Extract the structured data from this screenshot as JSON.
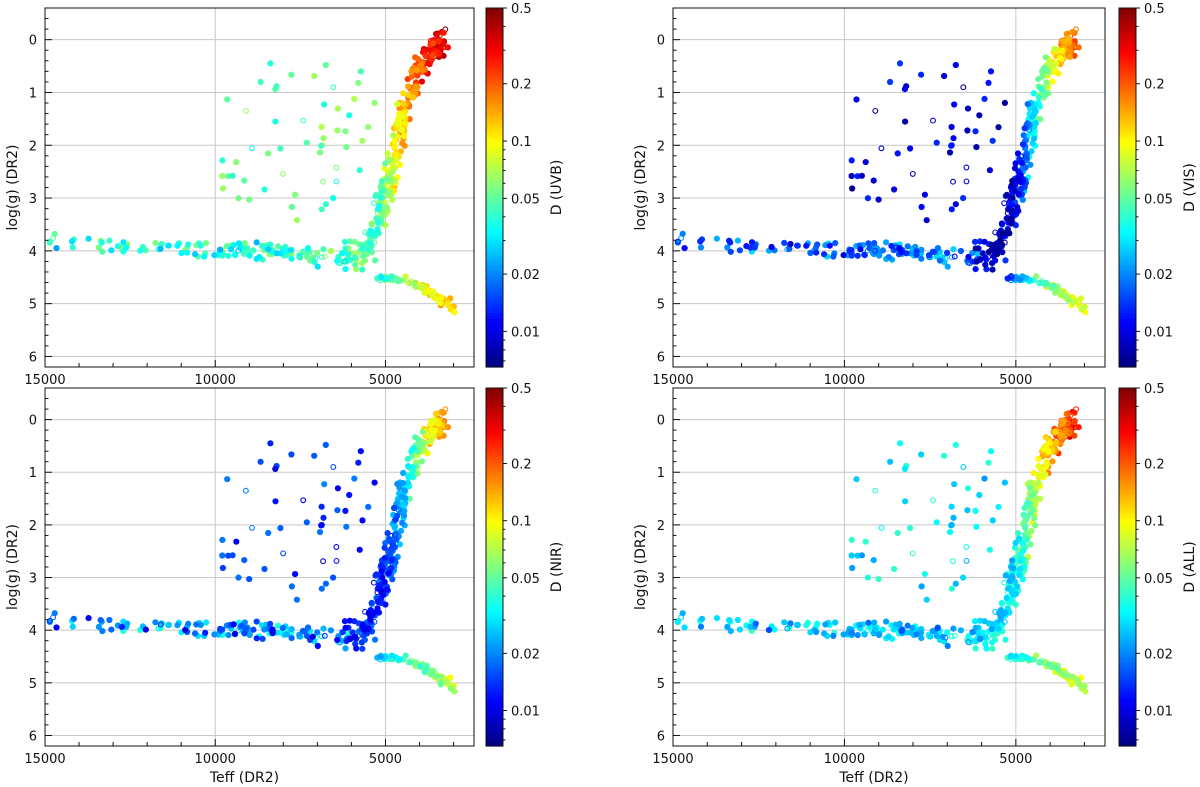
{
  "chart_data": [
    {
      "type": "scatter",
      "panel": "top-left",
      "title": "",
      "xlabel": "",
      "ylabel": "log(g)  (DR2)",
      "colorbar_label": "D (UVB)",
      "seed": 11,
      "highlight": {
        "high_teff": 0.72,
        "low_teff": 0.06,
        "dwarf": 0.05
      },
      "xlim": [
        15000,
        2400
      ],
      "ylim": [
        6.2,
        -0.6
      ],
      "x_inverted": true,
      "y_inverted": true,
      "xticks": [
        15000,
        10000,
        5000
      ],
      "xtick_labels": [
        "15000",
        "10000",
        "5000"
      ],
      "yticks": [
        0,
        1,
        2,
        3,
        4,
        5,
        6
      ],
      "ytick_labels": [
        "0",
        "1",
        "2",
        "3",
        "4",
        "5",
        "6"
      ],
      "grid": true
    },
    {
      "type": "scatter",
      "panel": "top-right",
      "title": "",
      "xlabel": "",
      "ylabel": "log(g)  (DR2)",
      "colorbar_label": "D (VIS)",
      "seed": 23,
      "highlight": {
        "high_teff": 0.12,
        "low_teff": 0.55,
        "dwarf": 0.02
      },
      "xlim": [
        15000,
        2400
      ],
      "ylim": [
        6.2,
        -0.6
      ],
      "x_inverted": true,
      "y_inverted": true,
      "xticks": [
        15000,
        10000,
        5000
      ],
      "xtick_labels": [
        "15000",
        "10000",
        "5000"
      ],
      "yticks": [
        0,
        1,
        2,
        3,
        4,
        5,
        6
      ],
      "ytick_labels": [
        "0",
        "1",
        "2",
        "3",
        "4",
        "5",
        "6"
      ],
      "grid": true
    },
    {
      "type": "scatter",
      "panel": "bottom-left",
      "title": "",
      "xlabel": "Teff  (DR2)",
      "ylabel": "log(g)  (DR2)",
      "colorbar_label": "D (NIR)",
      "seed": 37,
      "highlight": {
        "high_teff": 0.12,
        "low_teff": 0.25,
        "dwarf": 0.02
      },
      "xlim": [
        15000,
        2400
      ],
      "ylim": [
        6.2,
        -0.6
      ],
      "x_inverted": true,
      "y_inverted": true,
      "xticks": [
        15000,
        10000,
        5000
      ],
      "xtick_labels": [
        "15000",
        "10000",
        "5000"
      ],
      "yticks": [
        0,
        1,
        2,
        3,
        4,
        5,
        6
      ],
      "ytick_labels": [
        "0",
        "1",
        "2",
        "3",
        "4",
        "5",
        "6"
      ],
      "grid": true
    },
    {
      "type": "scatter",
      "panel": "bottom-right",
      "title": "",
      "xlabel": "Teff  (DR2)",
      "ylabel": "log(g)  (DR2)",
      "colorbar_label": "D (ALL)",
      "seed": 51,
      "highlight": {
        "high_teff": 0.3,
        "low_teff": 0.6,
        "dwarf": 0.03
      },
      "xlim": [
        15000,
        2400
      ],
      "ylim": [
        6.2,
        -0.6
      ],
      "x_inverted": true,
      "y_inverted": true,
      "xticks": [
        15000,
        10000,
        5000
      ],
      "xtick_labels": [
        "15000",
        "10000",
        "5000"
      ],
      "yticks": [
        0,
        1,
        2,
        3,
        4,
        5,
        6
      ],
      "ytick_labels": [
        "0",
        "1",
        "2",
        "3",
        "4",
        "5",
        "6"
      ],
      "grid": true
    }
  ],
  "colorbar": {
    "scale": "log",
    "range": [
      0.0065,
      0.5
    ],
    "ticks": [
      0.01,
      0.02,
      0.05,
      0.1,
      0.2,
      0.5
    ],
    "tick_labels": [
      "0.01",
      "0.02",
      "0.05",
      "0.1",
      "0.2",
      "0.5"
    ],
    "colormap": "jet"
  },
  "hr_diagram_data": {
    "giant_branch": [
      [
        5600,
        4.0
      ],
      [
        5200,
        3.4
      ],
      [
        4950,
        2.8
      ],
      [
        4750,
        2.2
      ],
      [
        4550,
        1.6
      ],
      [
        4300,
        1.0
      ],
      [
        3950,
        0.5
      ],
      [
        3600,
        0.15
      ],
      [
        3300,
        0.0
      ]
    ],
    "main_sequence": [
      [
        5200,
        4.5
      ],
      [
        4700,
        4.55
      ],
      [
        4200,
        4.6
      ],
      [
        3800,
        4.75
      ],
      [
        3300,
        4.95
      ],
      [
        2900,
        5.15
      ]
    ],
    "hot_sequence": [
      [
        15000,
        3.8
      ],
      [
        12000,
        3.95
      ],
      [
        9000,
        4.0
      ],
      [
        7500,
        4.05
      ],
      [
        6000,
        4.15
      ]
    ],
    "star_count": 610
  }
}
